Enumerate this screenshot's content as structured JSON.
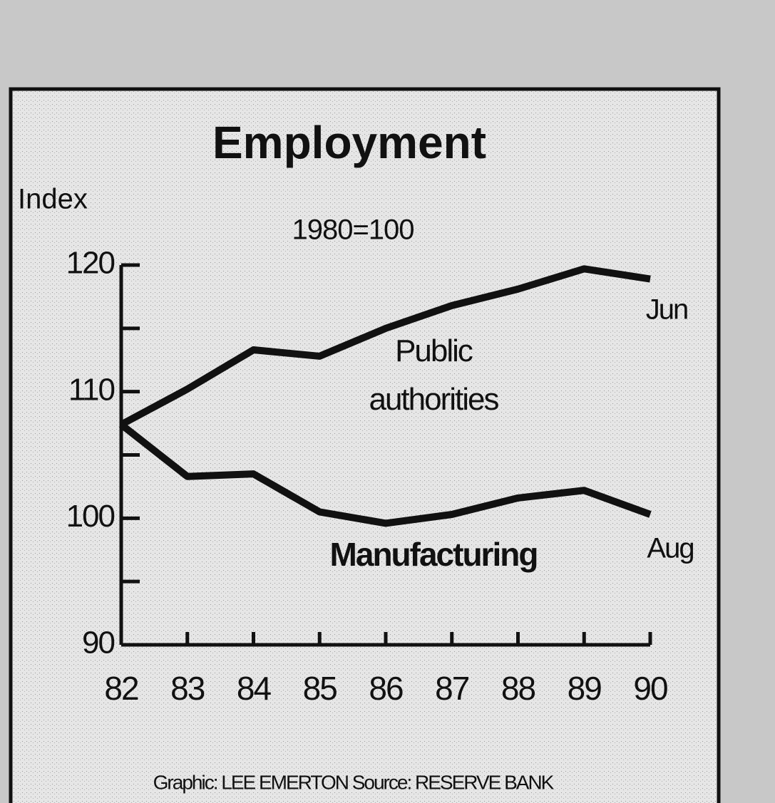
{
  "chart_data": {
    "type": "line",
    "title": "Employment",
    "subtitle": "1980=100",
    "y_label": "Index",
    "categories": [
      "82",
      "83",
      "84",
      "85",
      "86",
      "87",
      "88",
      "89",
      "90"
    ],
    "series": [
      {
        "name": "Public authorities",
        "color": "#111111",
        "values": [
          107.4,
          110.2,
          113.3,
          112.8,
          115,
          116.8,
          118.1,
          119.7,
          118.9
        ],
        "end_label": "Jun"
      },
      {
        "name": "Manufacturing",
        "color": "#111111",
        "values": [
          107.4,
          103.3,
          103.5,
          100.5,
          99.6,
          100.3,
          101.6,
          102.2,
          100.3
        ],
        "end_label": "Aug"
      }
    ],
    "ylim": [
      90,
      120
    ],
    "yticks": [
      90,
      100,
      110,
      120
    ],
    "minor_yticks": [
      95,
      105,
      115
    ],
    "credit": "Graphic: LEE EMERTON   Source: RESERVE BANK"
  }
}
